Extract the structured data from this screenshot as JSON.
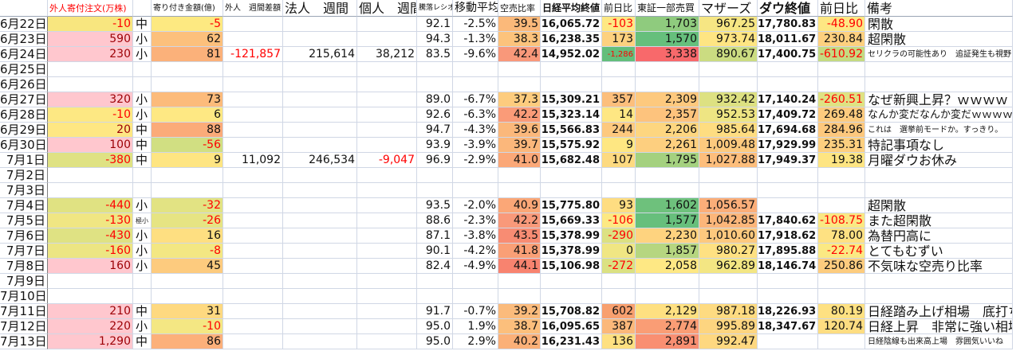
{
  "headers": [
    "",
    "外人寄付注文(万株)",
    "",
    "寄り付き金額(億)",
    "外人　週間差額",
    "法人　週間",
    "個人　週間",
    "騰落レシオ",
    "移動平均",
    "空売比率",
    "日経平均終値",
    "前日比",
    "東証一部売買",
    "マザーズ",
    "ダウ終値",
    "前日比",
    "備考"
  ],
  "rows": [
    {
      "c": [
        "6月22日",
        "-10",
        "中",
        "-5",
        "",
        "",
        "",
        "92.1",
        "-2.5%",
        "39.5",
        "16,065.72",
        "-103",
        "1,703",
        "967.25",
        "17,780.83",
        "-48.90",
        "閑散"
      ],
      "bg": [
        "",
        "#f8e67f",
        "",
        "#fde981",
        "",
        "",
        "",
        "",
        "",
        "#fbb97a",
        "",
        "#fee883",
        "#8fcb7e",
        "#f6e683",
        "",
        "#fee783",
        ""
      ]
    },
    {
      "c": [
        "6月23日",
        "590",
        "小",
        "62",
        "",
        "",
        "",
        "94.3",
        "-1.3%",
        "38.3",
        "16,238.35",
        "173",
        "1,570",
        "973.74",
        "18,011.67",
        "230.84",
        "超閑散"
      ],
      "bg": [
        "",
        "#ffc7ce",
        "",
        "#fcc07c",
        "",
        "",
        "",
        "",
        "",
        "#fcc37c",
        "",
        "#fdd17f",
        "#66bf7c",
        "#fee583",
        "",
        "#fdd07f",
        ""
      ]
    },
    {
      "c": [
        "6月24日",
        "230",
        "小",
        "81",
        "-121,857",
        "215,614",
        "38,212",
        "83.5",
        "-9.6%",
        "42.4",
        "14,952.02",
        "-1,286",
        "3,338",
        "890.67",
        "17,400.75",
        "-610.92",
        "セリクラの可能性あり　追証発生も視野"
      ],
      "bg": [
        "",
        "#ffc7ce",
        "",
        "#fbb17a",
        "",
        "",
        "",
        "",
        "",
        "#f9987a",
        "",
        "#63be7b",
        "#f8696b",
        "#cbdc81",
        "",
        "#c5da81",
        ""
      ]
    },
    {
      "c": [
        "6月25日",
        "",
        "",
        "",
        "",
        "",
        "",
        "",
        "",
        "",
        "",
        "",
        "",
        "",
        "",
        "",
        ""
      ],
      "bg": []
    },
    {
      "c": [
        "6月26日",
        "",
        "",
        "",
        "",
        "",
        "",
        "",
        "",
        "",
        "",
        "",
        "",
        "",
        "",
        "",
        ""
      ],
      "bg": []
    },
    {
      "c": [
        "6月27日",
        "320",
        "小",
        "73",
        "",
        "",
        "",
        "89.0",
        "-6.7%",
        "37.3",
        "15,309.21",
        "357",
        "2,309",
        "932.42",
        "17,140.24",
        "-260.51",
        "なぜ新興上昇？ｗｗｗｗ"
      ],
      "bg": [
        "",
        "#ffc7ce",
        "",
        "#fcbb7b",
        "",
        "",
        "",
        "",
        "",
        "#fdcc7e",
        "",
        "#fcbf7c",
        "#fdc97e",
        "#dde182",
        "",
        "#dfe283",
        ""
      ]
    },
    {
      "c": [
        "6月28日",
        "-10",
        "小",
        "6",
        "",
        "",
        "",
        "92.6",
        "-6.3%",
        "42.2",
        "15,323.14",
        "14",
        "2,357",
        "952.53",
        "17,409.72",
        "269.48",
        "なんか変だなんか変だｗｗｗｗ"
      ],
      "bg": [
        "",
        "#fde883",
        "",
        "#fee883",
        "",
        "",
        "",
        "",
        "",
        "#fa9b78",
        "",
        "#fee783",
        "#fdc37d",
        "#eee583",
        "",
        "#fdcb7e",
        ""
      ]
    },
    {
      "c": [
        "6月29日",
        "20",
        "中",
        "88",
        "",
        "",
        "",
        "94.7",
        "-4.3%",
        "39.6",
        "15,566.83",
        "244",
        "2,206",
        "985.64",
        "17,694.68",
        "284.96",
        "これは　選挙前モードか。すっきり。"
      ],
      "bg": [
        "",
        "#fee783",
        "",
        "#fbab79",
        "",
        "",
        "",
        "",
        "",
        "#fbb87b",
        "",
        "#fdc97e",
        "#fdd680",
        "#fedd81",
        "",
        "#fdc87d",
        ""
      ]
    },
    {
      "c": [
        "6月30日",
        "100",
        "中",
        "-56",
        "",
        "",
        "",
        "93.9",
        "-3.9%",
        "39.7",
        "15,575.92",
        "9",
        "2,261",
        "1,009.48",
        "17,929.99",
        "235.31",
        "特記事項なし"
      ],
      "bg": [
        "",
        "#ffc7ce",
        "",
        "#d1df82",
        "",
        "",
        "",
        "",
        "",
        "#fbb77b",
        "",
        "#fee782",
        "#fdcf7f",
        "#fdca7e",
        "",
        "#fdcf7f",
        ""
      ]
    },
    {
      "c": [
        "7月1日",
        "-380",
        "中",
        "9",
        "11,092",
        "246,534",
        "-9,047",
        "96.9",
        "-2.9%",
        "41.0",
        "15,682.48",
        "107",
        "1,795",
        "1,027.88",
        "17,949.37",
        "19.38",
        "月曜ダウお休み"
      ],
      "bg": [
        "",
        "#dfe283",
        "",
        "#fee582",
        "",
        "",
        "",
        "",
        "",
        "#fba878",
        "",
        "#fdda80",
        "#a4d17f",
        "#fdbe7c",
        "",
        "#fee582",
        ""
      ]
    },
    {
      "c": [
        "7月2日",
        "",
        "",
        "",
        "",
        "",
        "",
        "",
        "",
        "",
        "",
        "",
        "",
        "",
        "",
        "",
        ""
      ],
      "bg": []
    },
    {
      "c": [
        "7月3日",
        "",
        "",
        "",
        "",
        "",
        "",
        "",
        "",
        "",
        "",
        "",
        "",
        "",
        "",
        "",
        ""
      ],
      "bg": []
    },
    {
      "c": [
        "7月4日",
        "-440",
        "小",
        "-32",
        "",
        "",
        "",
        "93.5",
        "-2.0%",
        "40.9",
        "15,775.80",
        "93",
        "1,602",
        "1,056.57",
        "",
        "",
        "超閑散"
      ],
      "bg": [
        "",
        "#e0e282",
        "",
        "#e2e383",
        "",
        "",
        "",
        "",
        "",
        "#fba777",
        "",
        "#fedd81",
        "#6ec17c",
        "#fbae79",
        "",
        "",
        ""
      ]
    },
    {
      "c": [
        "7月5日",
        "-130",
        "極小",
        "-26",
        "",
        "",
        "",
        "88.6",
        "-2.3%",
        "42.2",
        "15,669.33",
        "-106",
        "1,577",
        "1,042.85",
        "17,840.62",
        "-108.75",
        "また超閑散"
      ],
      "bg": [
        "",
        "#f0e683",
        "",
        "#e6e483",
        "",
        "",
        "",
        "",
        "",
        "#f9997a",
        "",
        "#fde983",
        "#67bf7c",
        "#fcb67a",
        "",
        "#fae883",
        ""
      ]
    },
    {
      "c": [
        "7月6日",
        "-430",
        "小",
        "16",
        "",
        "",
        "",
        "87.1",
        "-3.8%",
        "43.5",
        "15,378.99",
        "-290",
        "2,230",
        "1,010.60",
        "17,918.62",
        "78.00",
        "為替円高に"
      ],
      "bg": [
        "",
        "#dfe283",
        "",
        "#fedf81",
        "",
        "",
        "",
        "",
        "",
        "#f88c73",
        "",
        "#dce182",
        "#fed37f",
        "#fdc97e",
        "",
        "#fee182",
        ""
      ]
    },
    {
      "c": [
        "7月7日",
        "-160",
        "小",
        "-8",
        "",
        "",
        "",
        "90.1",
        "-4.2%",
        "41.8",
        "15,378.99",
        "0",
        "1,857",
        "980.27",
        "17,895.88",
        "-22.74",
        "とてもむずい"
      ],
      "bg": [
        "",
        "#ece583",
        "",
        "#f3e783",
        "",
        "",
        "",
        "",
        "",
        "#fa9f76",
        "",
        "#f0e683",
        "#b6d680",
        "#fee182",
        "",
        "#fbe983",
        ""
      ]
    },
    {
      "c": [
        "7月8日",
        "160",
        "小",
        "45",
        "",
        "",
        "",
        "82.4",
        "-4.9%",
        "44.1",
        "15,106.98",
        "-272",
        "2,058",
        "962.89",
        "18,146.74",
        "250.86",
        "不気味な空売り比率"
      ],
      "bg": [
        "",
        "#ffc7ce",
        "",
        "#fdcb7e",
        "",
        "",
        "",
        "",
        "",
        "#f8836f",
        "",
        "#dbe182",
        "#fee884",
        "#f3e683",
        "",
        "#fdcc7e",
        ""
      ]
    },
    {
      "c": [
        "7月9日",
        "",
        "",
        "",
        "",
        "",
        "",
        "",
        "",
        "",
        "",
        "",
        "",
        "",
        "",
        "",
        ""
      ],
      "bg": []
    },
    {
      "c": [
        "7月10日",
        "",
        "",
        "",
        "",
        "",
        "",
        "",
        "",
        "",
        "",
        "",
        "",
        "",
        "",
        "",
        ""
      ],
      "bg": []
    },
    {
      "c": [
        "7月11日",
        "210",
        "中",
        "31",
        "",
        "",
        "",
        "91.7",
        "-0.7%",
        "39.2",
        "15,708.82",
        "602",
        "2,129",
        "987.18",
        "18,226.93",
        "80.19",
        "日経踏み上げ相場　底打ちか"
      ],
      "bg": [
        "",
        "#ffc7ce",
        "",
        "#fed980",
        "",
        "",
        "",
        "",
        "",
        "#fbbb7c",
        "",
        "#f8a06f",
        "#fee081",
        "#fedb81",
        "",
        "#fee182",
        ""
      ]
    },
    {
      "c": [
        "7月12日",
        "220",
        "小",
        "-10",
        "",
        "",
        "",
        "95.0",
        "1.9%",
        "38.7",
        "16,095.65",
        "387",
        "2,774",
        "995.89",
        "18,347.67",
        "120.74",
        "日経上昇　非常に強い相場"
      ],
      "bg": [
        "",
        "#ffc7ce",
        "",
        "#f4e783",
        "",
        "",
        "",
        "",
        "",
        "#fcbf7c",
        "",
        "#fbb87a",
        "#fa9d75",
        "#fdd580",
        "",
        "#fedd81",
        ""
      ]
    },
    {
      "c": [
        "7月13日",
        "1,290",
        "中",
        "86",
        "",
        "",
        "",
        "95.0",
        "2.9%",
        "40.2",
        "16,231.43",
        "136",
        "2,891",
        "992.47",
        "",
        "",
        "日経陰線も出来高上場　雰囲気いいね"
      ],
      "bg": [
        "",
        "#ffc7ce",
        "",
        "#fcb07a",
        "",
        "",
        "",
        "",
        "",
        "#fbb078",
        "",
        "#fee081",
        "#f98f72",
        "#fed880",
        "",
        "",
        ""
      ]
    }
  ],
  "colors": {
    "negative_text": "#ff0000",
    "positive_foreign_text": "#9c0006",
    "grid": "#d0d7e5"
  }
}
